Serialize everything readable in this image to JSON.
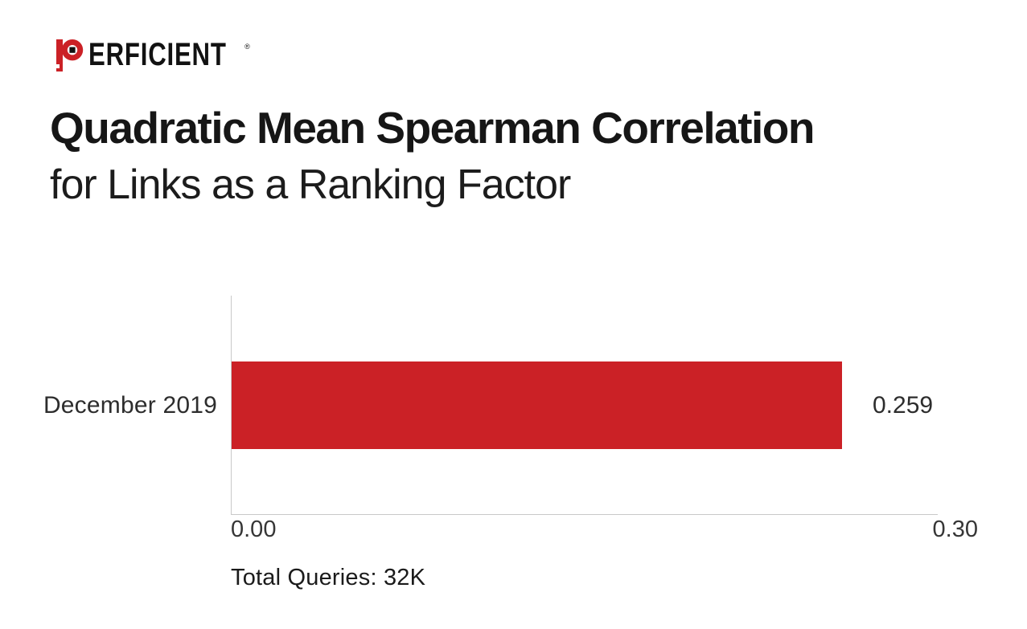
{
  "colors": {
    "brand_red": "#CB2126",
    "axis_gray": "#C9C9C9",
    "title_dark": "#161616",
    "label_gray": "#2D2D2D"
  },
  "logo": {
    "name": "Perficient",
    "word": "ERFICIENT",
    "trademark": "®"
  },
  "title": {
    "line1": "Quadratic Mean Spearman Correlation",
    "line2": "for Links as a Ranking Factor"
  },
  "chart_data": {
    "type": "bar",
    "orientation": "horizontal",
    "title": "Quadratic Mean Spearman Correlation for Links as a Ranking Factor",
    "categories": [
      "December 2019"
    ],
    "values": [
      0.259
    ],
    "value_labels": [
      "0.259"
    ],
    "xlim": [
      0,
      0.3
    ],
    "x_tick_labels": [
      "0.00",
      "0.30"
    ],
    "bar_color": "#CB2126",
    "grid": false,
    "legend": false,
    "footnote": "Total Queries: 32K"
  }
}
